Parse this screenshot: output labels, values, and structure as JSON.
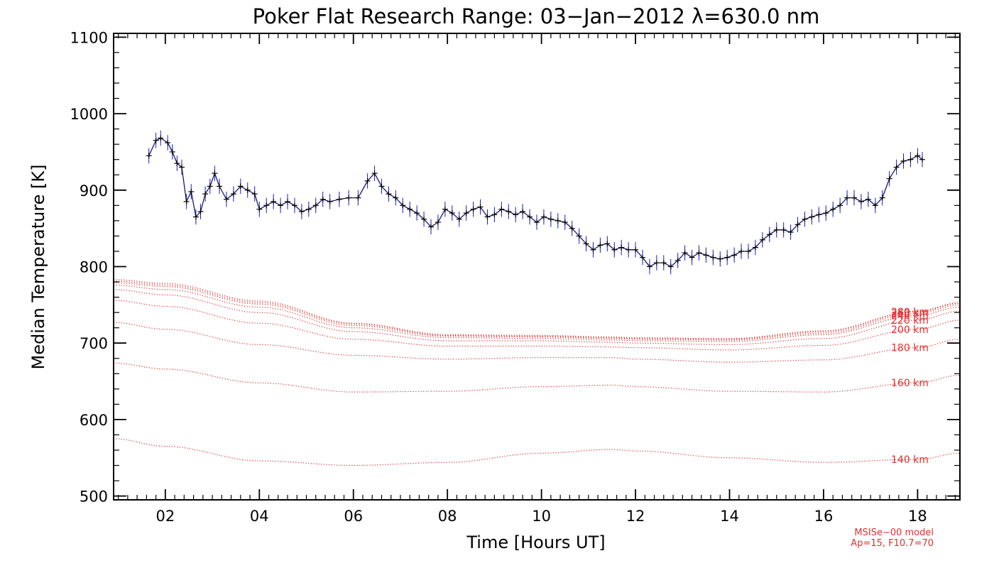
{
  "chart_data": {
    "type": "line",
    "title": "Poker Flat Research Range: 03−Jan−2012 λ=630.0 nm",
    "xlabel": "Time [Hours UT]",
    "ylabel": "Median Temperature [K]",
    "xlim": [
      0.9,
      18.9
    ],
    "ylim": [
      495,
      1105
    ],
    "x_ticks": [
      2,
      4,
      6,
      8,
      10,
      12,
      14,
      16,
      18
    ],
    "x_tick_labels": [
      "02",
      "04",
      "06",
      "08",
      "10",
      "12",
      "14",
      "16",
      "18"
    ],
    "y_ticks": [
      500,
      600,
      700,
      800,
      900,
      1000,
      1100
    ],
    "y_tick_labels": [
      "500",
      "600",
      "700",
      "800",
      "900",
      "1000",
      "1100"
    ],
    "grid": false,
    "colors": {
      "data": "#000000",
      "error_bars": "#1a1acc",
      "model": "#e03030",
      "axes": "#000000"
    },
    "measured": {
      "name": "",
      "error_bar": 10,
      "x": [
        1.65,
        1.8,
        1.9,
        2.05,
        2.15,
        2.25,
        2.35,
        2.45,
        2.55,
        2.65,
        2.75,
        2.85,
        2.95,
        3.05,
        3.15,
        3.3,
        3.45,
        3.6,
        3.75,
        3.9,
        4.0,
        4.15,
        4.3,
        4.45,
        4.6,
        4.75,
        4.9,
        5.05,
        5.2,
        5.35,
        5.5,
        5.7,
        5.9,
        6.1,
        6.3,
        6.45,
        6.6,
        6.75,
        6.9,
        7.05,
        7.2,
        7.35,
        7.5,
        7.65,
        7.8,
        7.95,
        8.1,
        8.25,
        8.4,
        8.55,
        8.7,
        8.85,
        9.0,
        9.15,
        9.3,
        9.45,
        9.6,
        9.75,
        9.9,
        10.05,
        10.2,
        10.35,
        10.5,
        10.65,
        10.8,
        10.95,
        11.1,
        11.25,
        11.4,
        11.55,
        11.7,
        11.85,
        12.0,
        12.15,
        12.3,
        12.45,
        12.6,
        12.75,
        12.9,
        13.05,
        13.2,
        13.35,
        13.5,
        13.65,
        13.8,
        13.95,
        14.1,
        14.25,
        14.4,
        14.55,
        14.7,
        14.85,
        15.0,
        15.15,
        15.3,
        15.45,
        15.6,
        15.75,
        15.9,
        16.05,
        16.2,
        16.35,
        16.5,
        16.65,
        16.8,
        16.95,
        17.1,
        17.25,
        17.4,
        17.55,
        17.7,
        17.85,
        18.0,
        18.1
      ],
      "y": [
        945,
        965,
        968,
        962,
        950,
        935,
        930,
        885,
        898,
        865,
        872,
        895,
        905,
        922,
        905,
        888,
        895,
        905,
        900,
        895,
        875,
        880,
        885,
        880,
        885,
        880,
        872,
        875,
        880,
        888,
        885,
        888,
        890,
        890,
        912,
        922,
        905,
        895,
        890,
        880,
        875,
        870,
        862,
        852,
        858,
        875,
        870,
        862,
        870,
        875,
        878,
        865,
        868,
        875,
        872,
        868,
        872,
        865,
        858,
        865,
        862,
        860,
        858,
        850,
        840,
        830,
        822,
        828,
        830,
        822,
        825,
        822,
        822,
        812,
        800,
        805,
        805,
        800,
        808,
        818,
        812,
        818,
        815,
        812,
        810,
        812,
        815,
        820,
        820,
        825,
        835,
        842,
        848,
        848,
        845,
        855,
        862,
        865,
        868,
        870,
        875,
        880,
        890,
        890,
        885,
        888,
        880,
        890,
        915,
        930,
        938,
        940,
        945,
        940
      ]
    },
    "model_series": [
      {
        "name": "140 km",
        "x": [
          0.9,
          2,
          4,
          6,
          8,
          10,
          11.5,
          12,
          14,
          16,
          18,
          18.9
        ],
        "y": [
          575,
          565,
          546,
          540,
          544,
          556,
          561,
          559,
          550,
          544,
          548,
          556
        ]
      },
      {
        "name": "160 km",
        "x": [
          0.9,
          2,
          4,
          6,
          8,
          10,
          11.5,
          12,
          14,
          16,
          18,
          18.9
        ],
        "y": [
          674,
          666,
          648,
          636,
          637,
          643,
          645,
          643,
          637,
          636,
          648,
          658
        ]
      },
      {
        "name": "180 km",
        "x": [
          0.9,
          2,
          4,
          6,
          8,
          10,
          11.5,
          12,
          14,
          16,
          18,
          18.9
        ],
        "y": [
          727,
          718,
          698,
          684,
          679,
          681,
          681,
          679,
          675,
          678,
          694,
          705
        ]
      },
      {
        "name": "200 km",
        "x": [
          0.9,
          2,
          4,
          6,
          8,
          10,
          11.5,
          12,
          14,
          16,
          18,
          18.9
        ],
        "y": [
          756,
          748,
          726,
          705,
          696,
          696,
          695,
          694,
          691,
          697,
          718,
          730
        ]
      },
      {
        "name": "220 km",
        "x": [
          0.9,
          2,
          4,
          6,
          8,
          10,
          11.5,
          12,
          14,
          16,
          18,
          18.9
        ],
        "y": [
          770,
          763,
          740,
          715,
          703,
          703,
          701,
          700,
          698,
          706,
          730,
          742
        ]
      },
      {
        "name": "240 km",
        "x": [
          0.9,
          2,
          4,
          6,
          8,
          10,
          11.5,
          12,
          14,
          16,
          18,
          18.9
        ],
        "y": [
          776,
          770,
          747,
          720,
          707,
          706,
          704,
          703,
          702,
          711,
          736,
          747
        ]
      },
      {
        "name": "260 km",
        "x": [
          0.9,
          2,
          4,
          6,
          8,
          10,
          11.5,
          12,
          14,
          16,
          18,
          18.9
        ],
        "y": [
          779,
          774,
          751,
          723,
          709,
          708,
          706,
          705,
          704,
          713,
          739,
          750
        ]
      },
      {
        "name": "280 km",
        "x": [
          0.9,
          2,
          4,
          6,
          8,
          10,
          11.5,
          12,
          14,
          16,
          18,
          18.9
        ],
        "y": [
          781,
          776,
          753,
          725,
          710,
          709,
          707,
          706,
          705,
          715,
          741,
          752
        ]
      },
      {
        "name": "",
        "x": [
          0.9,
          2,
          4,
          6,
          8,
          10,
          11.5,
          12,
          14,
          16,
          18,
          18.9
        ],
        "y": [
          783,
          778,
          755,
          726,
          711,
          710,
          708,
          707,
          706,
          716,
          742,
          753
        ]
      }
    ],
    "model_annotation": [
      "MSISe−00 model",
      "Ap=15, F10.7=70"
    ]
  }
}
